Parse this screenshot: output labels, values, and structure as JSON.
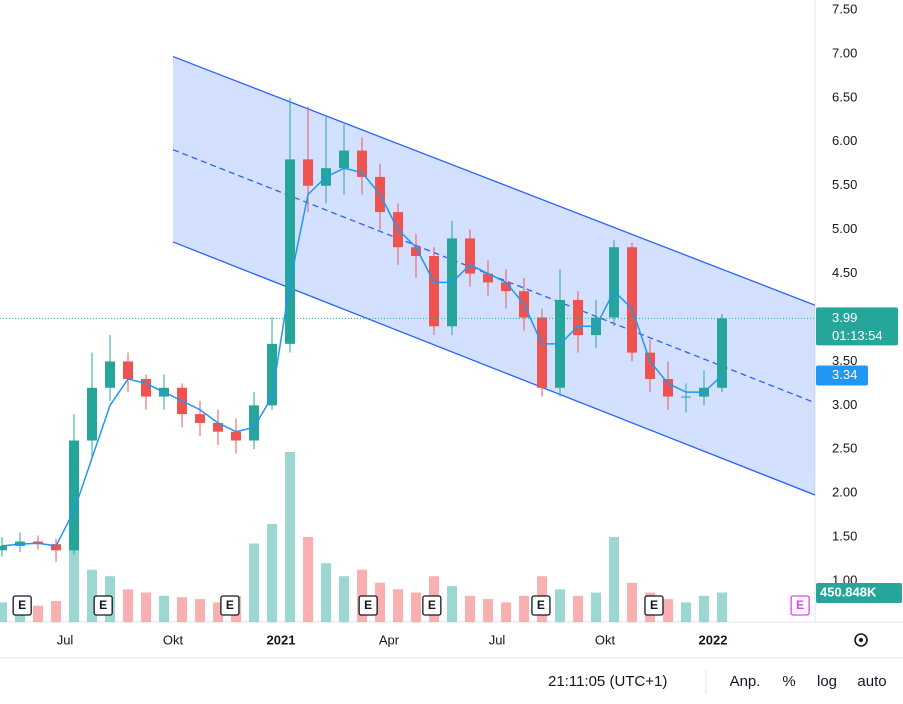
{
  "chart_data": {
    "type": "candlestick",
    "x": [
      -1.75,
      -1.25,
      -0.75,
      -0.25,
      0.25,
      0.75,
      1.25,
      1.75,
      2.25,
      2.75,
      3.25,
      3.75,
      4.25,
      4.75,
      5.25,
      5.75,
      6.25,
      6.75,
      7.25,
      7.75,
      8.25,
      8.75,
      9.25,
      9.75,
      10.25,
      10.75,
      11.25,
      11.75,
      12.25,
      12.75,
      13.25,
      13.75,
      14.25,
      14.75,
      15.25,
      15.75,
      16.25,
      16.75,
      17.25,
      17.75,
      18.25
    ],
    "open": [
      1.35,
      1.4,
      1.45,
      1.42,
      1.35,
      2.6,
      3.2,
      3.5,
      3.3,
      3.1,
      3.2,
      2.9,
      2.8,
      2.7,
      2.6,
      3.0,
      3.7,
      5.8,
      5.5,
      5.7,
      5.9,
      5.6,
      5.2,
      4.8,
      4.7,
      3.9,
      4.9,
      4.5,
      4.4,
      4.3,
      4.0,
      3.2,
      4.2,
      3.8,
      4.0,
      4.8,
      3.6,
      3.3,
      3.1,
      3.1,
      3.2
    ],
    "high": [
      1.5,
      1.55,
      1.52,
      1.48,
      2.9,
      3.6,
      3.8,
      3.6,
      3.35,
      3.35,
      3.25,
      3.05,
      2.95,
      2.85,
      3.15,
      4.0,
      6.5,
      6.4,
      6.3,
      6.2,
      6.05,
      5.75,
      5.3,
      4.95,
      4.8,
      5.1,
      5.0,
      4.65,
      4.55,
      4.45,
      4.1,
      4.55,
      4.3,
      4.2,
      4.88,
      4.85,
      3.75,
      3.5,
      3.25,
      3.4,
      4.04
    ],
    "low": [
      1.28,
      1.33,
      1.36,
      1.22,
      1.3,
      2.4,
      3.05,
      3.15,
      2.95,
      2.95,
      2.75,
      2.65,
      2.55,
      2.45,
      2.5,
      2.95,
      3.6,
      5.2,
      5.3,
      5.4,
      5.4,
      5.0,
      4.6,
      4.45,
      3.8,
      3.8,
      4.35,
      4.25,
      4.1,
      3.85,
      3.1,
      3.1,
      3.6,
      3.65,
      3.9,
      3.5,
      3.15,
      2.95,
      2.92,
      3.0,
      3.15
    ],
    "close": [
      1.4,
      1.45,
      1.42,
      1.35,
      2.6,
      3.2,
      3.5,
      3.3,
      3.1,
      3.2,
      2.9,
      2.8,
      2.7,
      2.6,
      3.0,
      3.7,
      5.8,
      5.5,
      5.7,
      5.9,
      5.6,
      5.2,
      4.8,
      4.7,
      3.9,
      4.9,
      4.5,
      4.4,
      4.3,
      4.0,
      3.2,
      4.2,
      3.8,
      4.0,
      4.8,
      3.6,
      3.3,
      3.1,
      3.1,
      3.2,
      3.99
    ],
    "ma": [
      1.4,
      1.42,
      1.43,
      1.4,
      1.8,
      2.4,
      3.0,
      3.3,
      3.25,
      3.15,
      3.05,
      2.95,
      2.8,
      2.7,
      2.75,
      3.1,
      4.4,
      5.4,
      5.6,
      5.7,
      5.65,
      5.4,
      5.0,
      4.8,
      4.4,
      4.4,
      4.6,
      4.5,
      4.4,
      4.15,
      3.7,
      3.7,
      3.9,
      3.9,
      4.3,
      4.1,
      3.5,
      3.25,
      3.15,
      3.15,
      3.34
    ],
    "volume": {
      "values": [
        300000,
        350000,
        250000,
        320000,
        1100000,
        800000,
        700000,
        500000,
        450000,
        400000,
        380000,
        350000,
        300000,
        400000,
        1200000,
        1500000,
        2600000,
        1300000,
        900000,
        700000,
        800000,
        600000,
        500000,
        450000,
        700000,
        550000,
        400000,
        350000,
        300000,
        400000,
        700000,
        500000,
        400000,
        450000,
        1300000,
        600000,
        450000,
        350000,
        300000,
        400000,
        450848
      ],
      "last_label": "450.848K"
    },
    "countdown": "01:13:54",
    "up_color": "#26a69a",
    "down_color": "#ef5350",
    "ma_color": "#2196f3",
    "channel_color": "#2962ff",
    "channel": {
      "upper": [
        [
          3,
          6.97
        ],
        [
          20.83,
          4.14
        ]
      ],
      "middle": [
        [
          3,
          5.91
        ],
        [
          20.83,
          3.03
        ]
      ],
      "lower": [
        [
          3,
          4.86
        ],
        [
          20.83,
          1.98
        ]
      ]
    },
    "earnings": [
      {
        "x": -1.19,
        "label": "E"
      },
      {
        "x": 1.06,
        "label": "E"
      },
      {
        "x": 4.58,
        "label": "E"
      },
      {
        "x": 8.42,
        "label": "E"
      },
      {
        "x": 10.19,
        "label": "E"
      },
      {
        "x": 13.22,
        "label": "E"
      },
      {
        "x": 16.36,
        "label": "E"
      },
      {
        "x": 20.42,
        "label": "E",
        "color": "#e040fb"
      }
    ],
    "xlim": [
      -1.806,
      20.833
    ],
    "xticks": [
      {
        "value": 0,
        "label": "Jul"
      },
      {
        "value": 3,
        "label": "Okt"
      },
      {
        "value": 6,
        "label": "2021"
      },
      {
        "value": 9,
        "label": "Apr"
      },
      {
        "value": 12,
        "label": "Jul"
      },
      {
        "value": 15,
        "label": "Okt"
      },
      {
        "value": 18,
        "label": "2022"
      }
    ],
    "ylim": [
      0.534,
      7.614
    ],
    "yticks": [
      {
        "value": 1,
        "label": "1.00"
      },
      {
        "value": 1.5,
        "label": "1.50"
      },
      {
        "value": 2,
        "label": "2.00"
      },
      {
        "value": 2.5,
        "label": "2.50"
      },
      {
        "value": 3,
        "label": "3.00"
      },
      {
        "value": 3.5,
        "label": "3.50"
      },
      {
        "value": 4,
        "label": "4.00"
      },
      {
        "value": 4.5,
        "label": "4.50"
      },
      {
        "value": 5,
        "label": "5.00"
      },
      {
        "value": 5.5,
        "label": "5.50"
      },
      {
        "value": 6,
        "label": "6.00"
      },
      {
        "value": 6.5,
        "label": "6.50"
      },
      {
        "value": 7,
        "label": "7.00"
      },
      {
        "value": 7.5,
        "label": "7.50"
      }
    ]
  },
  "toolbar": {
    "time": "21:11:05 (UTC+1)",
    "buttons": [
      "Anp.",
      "%",
      "log",
      "auto"
    ]
  }
}
